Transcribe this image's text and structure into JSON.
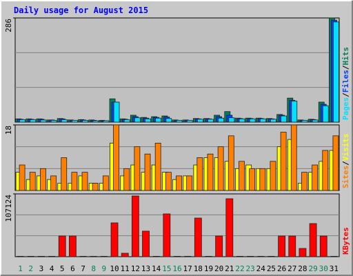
{
  "title": "Daily usage for August 2015",
  "legend_separator": "/",
  "chart_data": [
    {
      "type": "bar",
      "ylim": [
        0,
        286
      ],
      "yticks": [
        286
      ],
      "gridlines": [
        95.33,
        190.67
      ],
      "series": [
        {
          "name": "Hits",
          "color": "#00805c",
          "values": [
            9,
            9,
            9,
            6,
            10,
            6,
            7,
            6,
            5,
            64,
            9,
            19,
            13,
            15,
            17,
            6,
            6,
            10,
            10,
            19,
            29,
            11,
            11,
            11,
            10,
            21,
            66,
            6,
            8,
            55,
            286
          ]
        },
        {
          "name": "Files",
          "color": "#0040ff",
          "values": [
            8,
            8,
            8,
            6,
            9,
            5,
            6,
            5,
            4,
            55,
            8,
            15,
            11,
            13,
            14,
            5,
            5,
            9,
            9,
            15,
            19,
            10,
            10,
            10,
            9,
            19,
            60,
            5,
            7,
            49,
            280
          ]
        },
        {
          "name": "Pages",
          "color": "#00e0ff",
          "values": [
            7,
            7,
            6,
            5,
            7,
            5,
            5,
            4,
            4,
            55,
            7,
            12,
            9,
            11,
            10,
            5,
            5,
            8,
            8,
            11,
            12,
            9,
            9,
            9,
            8,
            17,
            58,
            5,
            6,
            45,
            275
          ]
        }
      ]
    },
    {
      "type": "bar",
      "ylim": [
        0,
        18
      ],
      "yticks": [
        18
      ],
      "gridlines": [
        6,
        12
      ],
      "series": [
        {
          "name": "Visits",
          "color": "#ffff00",
          "values": [
            5,
            3,
            4,
            3,
            2,
            2,
            4,
            2,
            2,
            13,
            4,
            7,
            5,
            7,
            5,
            3,
            4,
            7,
            9,
            9,
            8,
            6,
            7,
            6,
            6,
            12,
            14,
            2,
            5,
            8,
            11
          ]
        },
        {
          "name": "Sites",
          "color": "#ff8000",
          "values": [
            7,
            5,
            6,
            4,
            9,
            5,
            5,
            2,
            4,
            18,
            6,
            12,
            10,
            13,
            5,
            4,
            4,
            9,
            10,
            12,
            15,
            8,
            6,
            6,
            8,
            16,
            18,
            5,
            7,
            11,
            15
          ]
        }
      ]
    },
    {
      "type": "bar",
      "ylim": [
        0,
        107124
      ],
      "yticks": [
        107124
      ],
      "gridlines": [
        35708,
        71416
      ],
      "categories": [
        "1",
        "2",
        "3",
        "4",
        "5",
        "6",
        "7",
        "8",
        "9",
        "10",
        "11",
        "12",
        "13",
        "14",
        "15",
        "16",
        "17",
        "18",
        "19",
        "20",
        "21",
        "22",
        "23",
        "24",
        "25",
        "26",
        "27",
        "28",
        "29",
        "30",
        "31"
      ],
      "category_colors": [
        "#00805c",
        "#00805c",
        "#000000",
        "#000000",
        "#000000",
        "#000000",
        "#000000",
        "#00805c",
        "#00805c",
        "#000000",
        "#000000",
        "#000000",
        "#000000",
        "#000000",
        "#00805c",
        "#00805c",
        "#000000",
        "#000000",
        "#000000",
        "#000000",
        "#000000",
        "#00805c",
        "#00805c",
        "#000000",
        "#000000",
        "#000000",
        "#000000",
        "#000000",
        "#00805c",
        "#00805c",
        "#000000"
      ],
      "series": [
        {
          "name": "KBytes",
          "color": "#ff0000",
          "values": [
            0,
            0,
            0,
            0,
            35300,
            35300,
            0,
            0,
            0,
            57700,
            5900,
            103600,
            43600,
            0,
            73000,
            0,
            0,
            65900,
            0,
            35300,
            98900,
            0,
            0,
            0,
            0,
            35300,
            35300,
            14100,
            56500,
            35300,
            0
          ]
        }
      ]
    }
  ]
}
